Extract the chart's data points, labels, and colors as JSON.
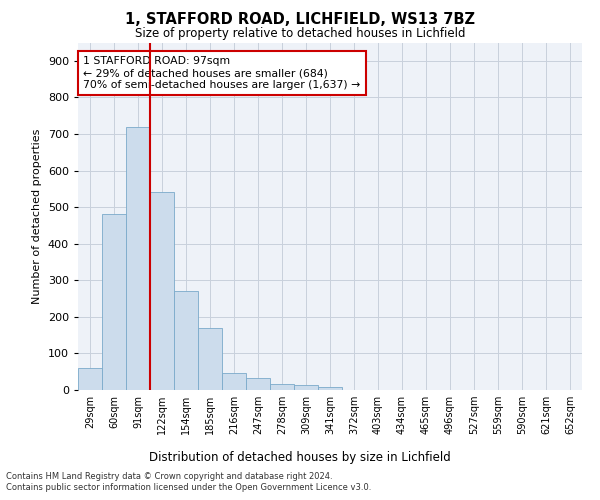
{
  "title1": "1, STAFFORD ROAD, LICHFIELD, WS13 7BZ",
  "title2": "Size of property relative to detached houses in Lichfield",
  "xlabel": "Distribution of detached houses by size in Lichfield",
  "ylabel": "Number of detached properties",
  "bar_color": "#ccdcec",
  "bar_edge_color": "#7aaaca",
  "categories": [
    "29sqm",
    "60sqm",
    "91sqm",
    "122sqm",
    "154sqm",
    "185sqm",
    "216sqm",
    "247sqm",
    "278sqm",
    "309sqm",
    "341sqm",
    "372sqm",
    "403sqm",
    "434sqm",
    "465sqm",
    "496sqm",
    "527sqm",
    "559sqm",
    "590sqm",
    "621sqm",
    "652sqm"
  ],
  "values": [
    60,
    480,
    720,
    540,
    270,
    170,
    47,
    32,
    17,
    14,
    8,
    0,
    0,
    0,
    0,
    0,
    0,
    0,
    0,
    0,
    0
  ],
  "ylim": [
    0,
    950
  ],
  "yticks": [
    0,
    100,
    200,
    300,
    400,
    500,
    600,
    700,
    800,
    900
  ],
  "vline_x": 2.5,
  "vline_color": "#cc0000",
  "annotation_text": "1 STAFFORD ROAD: 97sqm\n← 29% of detached houses are smaller (684)\n70% of semi-detached houses are larger (1,637) →",
  "footnote1": "Contains HM Land Registry data © Crown copyright and database right 2024.",
  "footnote2": "Contains public sector information licensed under the Open Government Licence v3.0.",
  "bg_color": "#eef2f8",
  "grid_color": "#c8d0dc"
}
